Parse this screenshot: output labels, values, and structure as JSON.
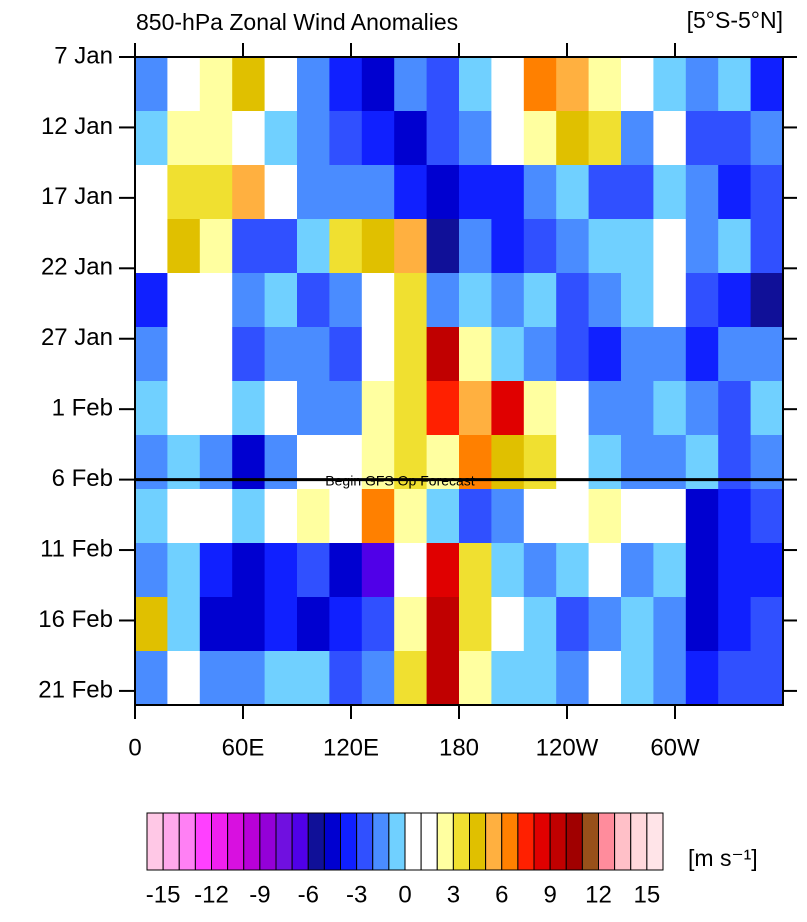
{
  "chart_data": {
    "type": "heatmap",
    "title": "850-hPa Zonal Wind Anomalies",
    "subtitle": "[5°S-5°N]",
    "annotation": {
      "text": "Begin GFS Op Forecast",
      "y": 30
    },
    "xlim": [
      0,
      360
    ],
    "ylim": [
      0,
      46
    ],
    "xticks": [
      0,
      {
        "value": 60,
        "label": "60E"
      },
      {
        "value": 120,
        "label": "120E"
      },
      180,
      {
        "value": 240,
        "label": "120W"
      },
      {
        "value": 300,
        "label": "60W"
      }
    ],
    "yticks": [
      {
        "value": 0,
        "label": "7 Jan"
      },
      {
        "value": 5,
        "label": "12 Jan"
      },
      {
        "value": 10,
        "label": "17 Jan"
      },
      {
        "value": 15,
        "label": "22 Jan"
      },
      {
        "value": 20,
        "label": "27 Jan"
      },
      {
        "value": 25,
        "label": "1 Feb"
      },
      {
        "value": 30,
        "label": "6 Feb"
      },
      {
        "value": 35,
        "label": "11 Feb"
      },
      {
        "value": 40,
        "label": "16 Feb"
      },
      {
        "value": 45,
        "label": "21 Feb"
      }
    ],
    "values": [
      [
        -2,
        1,
        2,
        4,
        1,
        -2,
        -4,
        -5,
        -2,
        -3,
        -1,
        1,
        6,
        5,
        2,
        0,
        -1,
        -2,
        -1,
        -4
      ],
      [
        -1,
        2,
        2,
        1,
        -1,
        -2,
        -3,
        -4,
        -5,
        -3,
        -2,
        1,
        2,
        4,
        3,
        -2,
        1,
        -3,
        -3,
        -2
      ],
      [
        1,
        3,
        3,
        5,
        1,
        -2,
        -2,
        -2,
        -4,
        -5,
        -4,
        -4,
        -2,
        -1,
        -3,
        -3,
        -1,
        -2,
        -4,
        -3
      ],
      [
        1,
        4,
        2,
        -3,
        -3,
        -1,
        3,
        4,
        5,
        -6,
        -2,
        -4,
        -3,
        -2,
        -1,
        -1,
        0,
        -2,
        -1,
        -3
      ],
      [
        -4,
        1,
        1,
        -2,
        -1,
        -3,
        -2,
        1,
        3,
        -2,
        -1,
        -2,
        -1,
        -3,
        -2,
        -1,
        0,
        -3,
        -4,
        -6
      ],
      [
        -2,
        1,
        1,
        -3,
        -2,
        -2,
        -3,
        1,
        3,
        9,
        2,
        -1,
        -2,
        -3,
        -4,
        -2,
        -2,
        -4,
        -2,
        -2
      ],
      [
        -1,
        1,
        0,
        -1,
        1,
        -2,
        -2,
        2,
        3,
        7,
        5,
        8,
        2,
        1,
        -2,
        -2,
        -1,
        -2,
        -3,
        -1
      ],
      [
        -2,
        -1,
        -2,
        -5,
        -2,
        1,
        1,
        2,
        3,
        2,
        6,
        4,
        3,
        1,
        -1,
        -2,
        -2,
        -1,
        -3,
        -2
      ],
      [
        -1,
        1,
        1,
        -1,
        1,
        2,
        1,
        6,
        2,
        -1,
        -3,
        -2,
        1,
        1,
        2,
        1,
        1,
        -5,
        -4,
        -3
      ],
      [
        -2,
        -1,
        -4,
        -5,
        -4,
        -3,
        -5,
        -7,
        1,
        8,
        3,
        -1,
        -2,
        -1,
        1,
        -2,
        -1,
        -5,
        -4,
        -4
      ],
      [
        4,
        -1,
        -5,
        -5,
        -4,
        -5,
        -4,
        -3,
        2,
        9,
        3,
        1,
        -1,
        -3,
        -2,
        -1,
        -2,
        -5,
        -4,
        -3
      ],
      [
        -2,
        1,
        -2,
        -2,
        -1,
        -1,
        -3,
        -2,
        3,
        9,
        2,
        -1,
        -1,
        -2,
        1,
        -1,
        -2,
        -4,
        -3,
        -3
      ]
    ],
    "colorbar": {
      "label": "[m s⁻¹]",
      "levels": [
        -15,
        -14,
        -13,
        -12,
        -11,
        -10,
        -9,
        -8,
        -7,
        -6,
        -5,
        -4,
        -3,
        -2,
        -1,
        0,
        1,
        2,
        3,
        4,
        5,
        6,
        7,
        8,
        9,
        10,
        11,
        12,
        13,
        14,
        15
      ],
      "ticks": [
        -15,
        -12,
        -9,
        -6,
        -3,
        0,
        3,
        6,
        9,
        12,
        15
      ],
      "colors": [
        "#ffc8e6",
        "#ffa8ec",
        "#ff80f4",
        "#ff40ff",
        "#f020f0",
        "#d810e0",
        "#b800d8",
        "#9400d8",
        "#7010e0",
        "#5000e8",
        "#101098",
        "#0000d0",
        "#1020ff",
        "#3050ff",
        "#4a8cff",
        "#70d0ff",
        "#ffffff",
        "#ffffff",
        "#ffffa0",
        "#f0e030",
        "#e0c000",
        "#ffb040",
        "#ff8000",
        "#ff2000",
        "#e00000",
        "#c00000",
        "#a00000",
        "#98501a",
        "#ff8c9c",
        "#ffc0c8",
        "#ffd8dc",
        "#ffe4e8"
      ]
    }
  }
}
